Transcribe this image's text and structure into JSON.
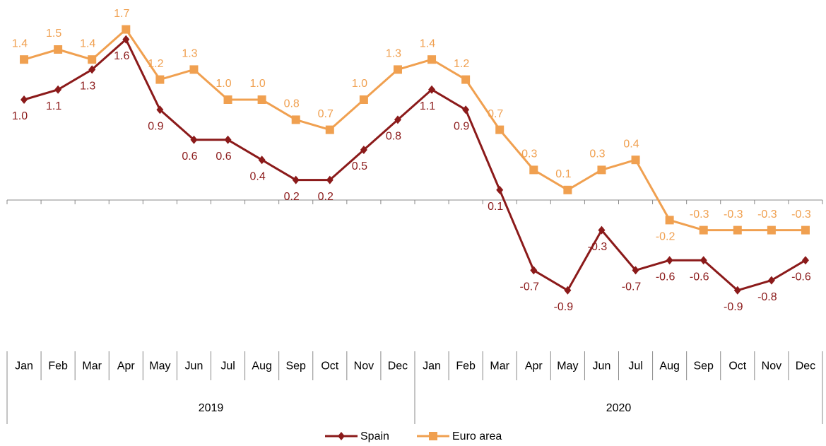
{
  "chart_data": {
    "type": "line",
    "categories": [
      "Jan",
      "Feb",
      "Mar",
      "Apr",
      "May",
      "Jun",
      "Jul",
      "Aug",
      "Sep",
      "Oct",
      "Nov",
      "Dec",
      "Jan",
      "Feb",
      "Mar",
      "Apr",
      "May",
      "Jun",
      "Jul",
      "Aug",
      "Sep",
      "Oct",
      "Nov",
      "Dec"
    ],
    "x_groups": [
      "2019",
      "2020"
    ],
    "ylim": [
      -1.4,
      2
    ],
    "legend": "bottom",
    "series": [
      {
        "name": "Spain",
        "color": "#8b1a1a",
        "marker": "diamond",
        "values": [
          1.0,
          1.1,
          1.3,
          1.6,
          0.9,
          0.6,
          0.6,
          0.4,
          0.2,
          0.2,
          0.5,
          0.8,
          1.1,
          0.9,
          0.1,
          -0.7,
          -0.9,
          -0.3,
          -0.7,
          -0.6,
          -0.6,
          -0.9,
          -0.8,
          -0.6
        ],
        "value_labels": [
          "1.0",
          "1.1",
          "1.3",
          "1.6",
          "0.9",
          "0.6",
          "0.6",
          "0.4",
          "0.2",
          "0.2",
          "0.5",
          "0.8",
          "1.1",
          "0.9",
          "0.1",
          "-0.7",
          "-0.9",
          "-0.3",
          "-0.7",
          "-0.6",
          "-0.6",
          "-0.9",
          "-0.8",
          "-0.6"
        ]
      },
      {
        "name": "Euro area",
        "color": "#f0a050",
        "marker": "square",
        "values": [
          1.4,
          1.5,
          1.4,
          1.7,
          1.2,
          1.3,
          1.0,
          1.0,
          0.8,
          0.7,
          1.0,
          1.3,
          1.4,
          1.2,
          0.7,
          0.3,
          0.1,
          0.3,
          0.4,
          -0.2,
          -0.3,
          -0.3,
          -0.3,
          -0.3
        ],
        "value_labels": [
          "1.4",
          "1.5",
          "1.4",
          "1.7",
          "1.2",
          "1.3",
          "1.0",
          "1.0",
          "0.8",
          "0.7",
          "1.0",
          "1.3",
          "1.4",
          "1.2",
          "0.7",
          "0.3",
          "0.1",
          "0.3",
          "0.4",
          "-0.2",
          "-0.3",
          "-0.3",
          "-0.3",
          "-0.3"
        ]
      }
    ]
  }
}
